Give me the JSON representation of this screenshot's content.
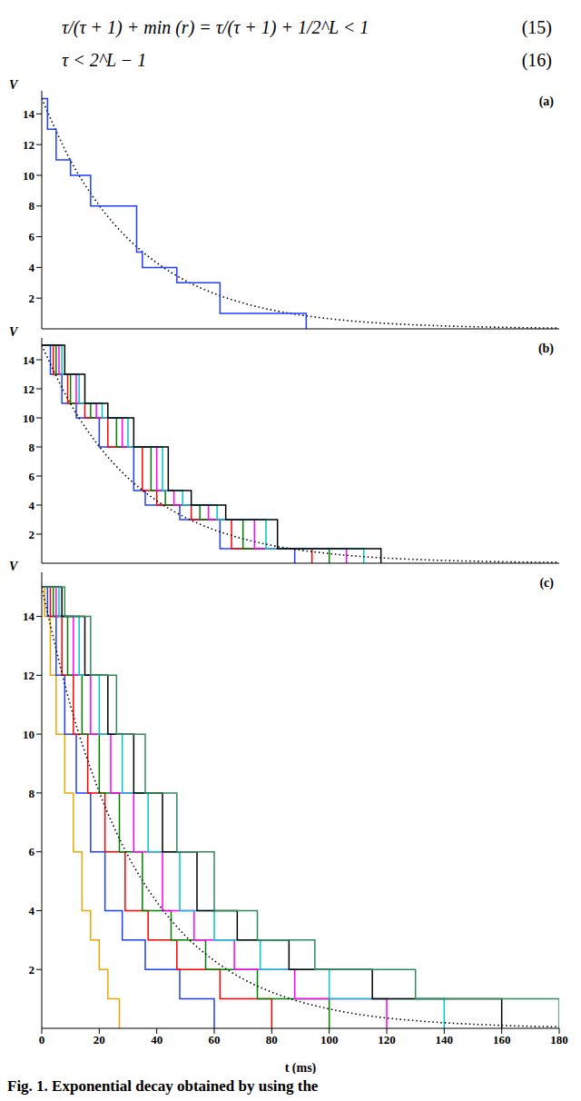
{
  "equations": [
    {
      "text": "τ/(τ + 1) + min (r) = τ/(τ + 1) + 1/2^L < 1",
      "number": "(15)"
    },
    {
      "text": "τ < 2^L − 1",
      "number": "(16)"
    }
  ],
  "caption": "Fig. 1. Exponential decay obtained by using the",
  "chart_data": [
    {
      "type": "line",
      "label": "(a)",
      "y_label": "V",
      "xlim": [
        0,
        180
      ],
      "ylim": [
        0,
        15.5
      ],
      "xticks": [
        0,
        20,
        40,
        60,
        80,
        100,
        120,
        140,
        160,
        180
      ],
      "yticks": [
        2,
        4,
        6,
        8,
        10,
        12,
        14
      ],
      "tick_labels": "y",
      "series": [
        {
          "color": "#000000",
          "line_style": "dotted",
          "x": [
            0,
            10,
            20,
            30,
            40,
            50,
            60,
            70,
            80,
            90,
            100,
            110,
            120,
            130,
            140,
            150,
            160,
            170,
            180
          ],
          "values": [
            15,
            10.97,
            8.03,
            5.87,
            4.3,
            3.14,
            2.3,
            1.68,
            1.23,
            0.9,
            0.66,
            0.48,
            0.35,
            0.26,
            0.19,
            0.14,
            0.1,
            0.07,
            0.05
          ]
        },
        {
          "color": "#1f3fff",
          "line_style": "step",
          "x": [
            0,
            2,
            5,
            10,
            17,
            33,
            35,
            47,
            62,
            92
          ],
          "values": [
            15,
            13,
            11,
            10,
            8,
            5,
            4,
            3,
            1,
            0
          ]
        }
      ]
    },
    {
      "type": "line",
      "label": "(b)",
      "y_label": "V",
      "xlim": [
        0,
        180
      ],
      "ylim": [
        0,
        15.5
      ],
      "xticks": [
        0,
        20,
        40,
        60,
        80,
        100,
        120,
        140,
        160,
        180
      ],
      "yticks": [
        2,
        4,
        6,
        8,
        10,
        12,
        14
      ],
      "tick_labels": "y",
      "series": [
        {
          "color": "#1f3fff",
          "line_style": "step",
          "x": [
            0,
            3,
            7,
            12,
            20,
            32,
            36,
            48,
            62,
            88
          ],
          "values": [
            15,
            13,
            11,
            10,
            8,
            5,
            4,
            3,
            1,
            0
          ]
        },
        {
          "color": "#ff0000",
          "line_style": "step",
          "x": [
            0,
            4,
            9,
            15,
            23,
            35,
            40,
            52,
            66,
            94
          ],
          "values": [
            15,
            13,
            11,
            10,
            8,
            5,
            4,
            3,
            1,
            0
          ]
        },
        {
          "color": "#008000",
          "line_style": "step",
          "x": [
            0,
            5,
            10,
            17,
            26,
            38,
            43,
            55,
            70,
            100
          ],
          "values": [
            15,
            13,
            11,
            10,
            8,
            5,
            4,
            3,
            1,
            0
          ]
        },
        {
          "color": "#ff00ff",
          "line_style": "step",
          "x": [
            0,
            6,
            12,
            19,
            28,
            40,
            46,
            58,
            74,
            106
          ],
          "values": [
            15,
            13,
            11,
            10,
            8,
            5,
            4,
            3,
            1,
            0
          ]
        },
        {
          "color": "#00c8c8",
          "line_style": "step",
          "x": [
            0,
            7,
            13,
            21,
            30,
            42,
            49,
            61,
            78,
            112
          ],
          "values": [
            15,
            13,
            11,
            10,
            8,
            5,
            4,
            3,
            1,
            0
          ]
        },
        {
          "color": "#000000",
          "line_style": "step",
          "x": [
            0,
            8,
            15,
            23,
            32,
            44,
            52,
            64,
            82,
            118
          ],
          "values": [
            15,
            13,
            11,
            10,
            8,
            5,
            4,
            3,
            1,
            0
          ]
        },
        {
          "color": "#000000",
          "line_style": "dotted",
          "x": [
            0,
            10,
            20,
            30,
            40,
            50,
            60,
            70,
            80,
            90,
            100,
            110,
            120,
            130,
            140,
            150,
            160,
            170,
            180
          ],
          "values": [
            15,
            10.97,
            8.03,
            5.87,
            4.3,
            3.14,
            2.3,
            1.68,
            1.23,
            0.9,
            0.66,
            0.48,
            0.35,
            0.26,
            0.19,
            0.14,
            0.1,
            0.07,
            0.05
          ]
        }
      ]
    },
    {
      "type": "line",
      "label": "(c)",
      "y_label": "V",
      "x_label": "t (ms)",
      "xlim": [
        0,
        180
      ],
      "ylim": [
        0,
        15.5
      ],
      "xticks": [
        0,
        20,
        40,
        60,
        80,
        100,
        120,
        140,
        160,
        180
      ],
      "yticks": [
        2,
        4,
        6,
        8,
        10,
        12,
        14
      ],
      "series": [
        {
          "color": "#e6a800",
          "line_style": "step",
          "x": [
            0,
            1,
            3,
            5,
            8,
            11,
            14,
            17,
            20,
            23,
            27
          ],
          "values": [
            15,
            14,
            12,
            10,
            8,
            6,
            4,
            3,
            2,
            1,
            0
          ]
        },
        {
          "color": "#1f3fff",
          "line_style": "step",
          "x": [
            0,
            2,
            5,
            8,
            12,
            17,
            22,
            28,
            36,
            48,
            60
          ],
          "values": [
            15,
            14,
            12,
            10,
            8,
            6,
            4,
            3,
            2,
            1,
            0
          ]
        },
        {
          "color": "#ff0000",
          "line_style": "step",
          "x": [
            0,
            3,
            7,
            11,
            16,
            22,
            29,
            37,
            47,
            62,
            80
          ],
          "values": [
            15,
            14,
            12,
            10,
            8,
            6,
            4,
            3,
            2,
            1,
            0
          ]
        },
        {
          "color": "#008000",
          "line_style": "step",
          "x": [
            0,
            4,
            9,
            14,
            20,
            27,
            35,
            45,
            57,
            75,
            100
          ],
          "values": [
            15,
            14,
            12,
            10,
            8,
            6,
            4,
            3,
            2,
            1,
            0
          ]
        },
        {
          "color": "#ff00ff",
          "line_style": "step",
          "x": [
            0,
            5,
            11,
            17,
            24,
            32,
            42,
            53,
            67,
            88,
            120
          ],
          "values": [
            15,
            14,
            12,
            10,
            8,
            6,
            4,
            3,
            2,
            1,
            0
          ]
        },
        {
          "color": "#00c8c8",
          "line_style": "step",
          "x": [
            0,
            6,
            13,
            20,
            28,
            37,
            48,
            60,
            76,
            100,
            140
          ],
          "values": [
            15,
            14,
            12,
            10,
            8,
            6,
            4,
            3,
            2,
            1,
            0
          ]
        },
        {
          "color": "#000000",
          "line_style": "step",
          "x": [
            0,
            7,
            15,
            23,
            32,
            42,
            54,
            68,
            86,
            115,
            160
          ],
          "values": [
            15,
            14,
            12,
            10,
            8,
            6,
            4,
            3,
            2,
            1,
            0
          ]
        },
        {
          "color": "#2e8b57",
          "line_style": "step",
          "x": [
            0,
            8,
            17,
            26,
            36,
            47,
            60,
            75,
            95,
            130,
            180
          ],
          "values": [
            15,
            14,
            12,
            10,
            8,
            6,
            4,
            3,
            2,
            1,
            0
          ]
        },
        {
          "color": "#000000",
          "line_style": "dotted",
          "x": [
            0,
            10,
            20,
            30,
            40,
            50,
            60,
            70,
            80,
            90,
            100,
            110,
            120,
            130,
            140,
            150,
            160,
            170,
            180
          ],
          "values": [
            15,
            10.97,
            8.03,
            5.87,
            4.3,
            3.14,
            2.3,
            1.68,
            1.23,
            0.9,
            0.66,
            0.48,
            0.35,
            0.26,
            0.19,
            0.14,
            0.1,
            0.07,
            0.05
          ]
        }
      ]
    }
  ]
}
